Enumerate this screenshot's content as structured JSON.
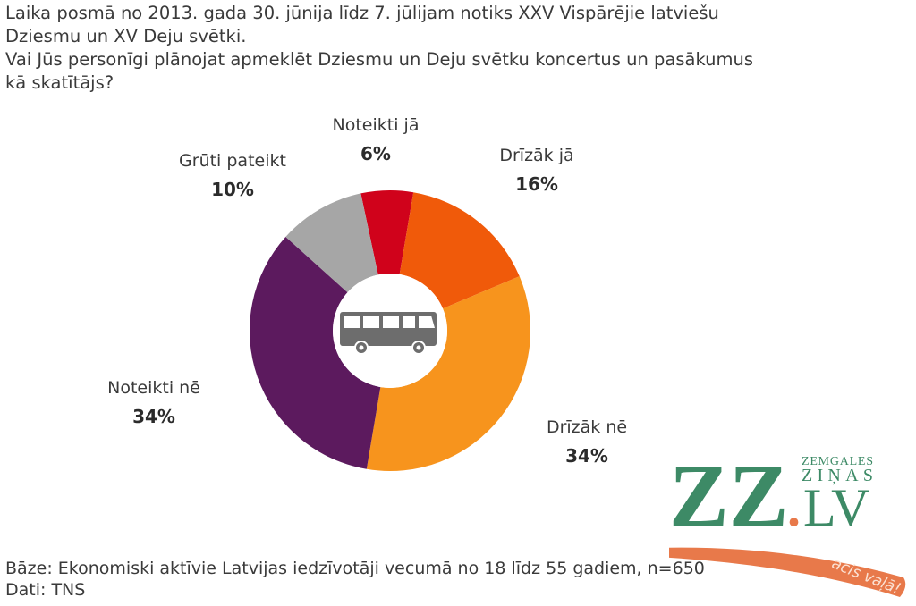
{
  "header": {
    "line1": "Laika posmā no 2013. gada 30. jūnija līdz 7. jūlijam notiks XXV Vispārējie latviešu",
    "line2": "Dziesmu un XV Deju svētki.",
    "line3": "Vai Jūs personīgi plānojat apmeklēt Dziesmu un Deju svētku koncertus un pasākumus",
    "line4": "kā skatītājs?"
  },
  "labels": {
    "noteikti_ja": {
      "name": "Noteikti jā",
      "pct": "6%"
    },
    "drizak_ja": {
      "name": "Drīzāk jā",
      "pct": "16%"
    },
    "drizak_ne": {
      "name": "Drīzāk nē",
      "pct": "34%"
    },
    "noteikti_ne": {
      "name": "Noteikti nē",
      "pct": "34%"
    },
    "gruti_pateikt": {
      "name": "Grūti pateikt",
      "pct": "10%"
    }
  },
  "center_icon": "bus-icon",
  "footer": {
    "base": "Bāze: Ekonomiski aktīvie Latvijas iedzīvotāji vecumā no 18 līdz 55 gadiem, n=650",
    "source": "Dati: TNS"
  },
  "logo": {
    "main": "ZZ",
    "dot": ".",
    "tld": "LV",
    "small_top": "ZEMGALES",
    "small_bottom": "ZIŅAS",
    "slogan": "acis vaļā!"
  },
  "colors": {
    "noteikti_ja": "#d0021b",
    "drizak_ja": "#f05a0a",
    "drizak_ne": "#f7941d",
    "noteikti_ne": "#5c1a5e",
    "gruti_pateikt": "#a6a6a6",
    "logo_green": "#3d8a66",
    "logo_orange": "#e8794a"
  },
  "chart_data": {
    "type": "pie",
    "variant": "donut",
    "title": "Vai Jūs personīgi plānojat apmeklēt Dziesmu un Deju svētku koncertus un pasākumus kā skatītājs?",
    "categories": [
      "Noteikti jā",
      "Drīzāk jā",
      "Drīzāk nē",
      "Noteikti nē",
      "Grūti pateikt"
    ],
    "values": [
      6,
      16,
      34,
      34,
      10
    ],
    "unit": "%",
    "colors": [
      "#d0021b",
      "#f05a0a",
      "#f7941d",
      "#5c1a5e",
      "#a6a6a6"
    ],
    "legend": "none (direct labels)",
    "notes": [
      "Bāze: Ekonomiski aktīvie Latvijas iedzīvotāji vecumā no 18 līdz 55 gadiem, n=650",
      "Dati: TNS"
    ]
  }
}
